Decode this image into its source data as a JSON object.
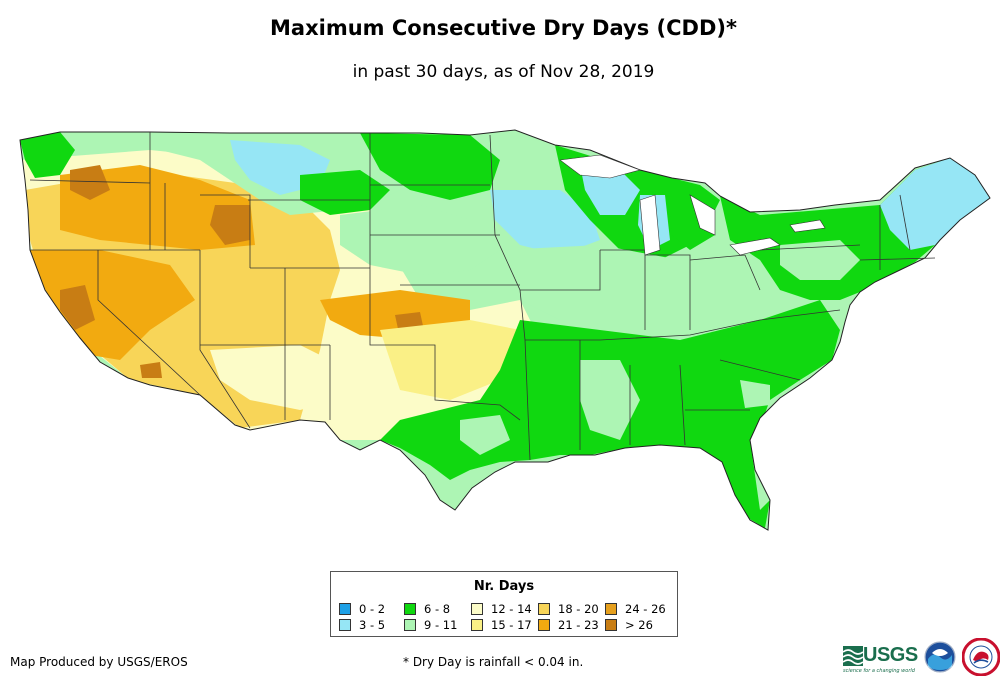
{
  "title": "Maximum Consecutive Dry Days (CDD)*",
  "subtitle": "in past 30 days, as of Nov 28, 2019",
  "legend": {
    "title": "Nr. Days",
    "items": [
      {
        "label": "0 - 2",
        "color": "#1ea0e6"
      },
      {
        "label": "3 - 5",
        "color": "#96e6f5"
      },
      {
        "label": "6 - 8",
        "color": "#10d810"
      },
      {
        "label": "9 - 11",
        "color": "#adf5b4"
      },
      {
        "label": "12 - 14",
        "color": "#fcfcc8"
      },
      {
        "label": "15 - 17",
        "color": "#faf086"
      },
      {
        "label": "18 - 20",
        "color": "#f8d558"
      },
      {
        "label": "21 - 23",
        "color": "#f2aa10"
      },
      {
        "label": "24 - 26",
        "color": "#e6a01e"
      },
      {
        "label": "> 26",
        "color": "#c87d14"
      }
    ]
  },
  "footer": {
    "credit": "Map Produced by USGS/EROS",
    "footnote": "* Dry Day is rainfall < 0.04 in."
  },
  "logos": {
    "usgs": "USGS",
    "usgs_tagline": "science for a changing world"
  }
}
